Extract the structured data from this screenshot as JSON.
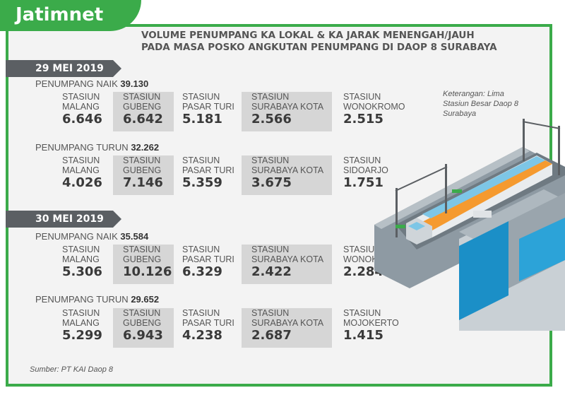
{
  "brand": {
    "logo": "Jatimnet"
  },
  "title": {
    "line1": "VOLUME PENUMPANG KA LOKAL & KA JARAK MENENGAH/JAUH",
    "line2": "PADA MASA POSKO ANGKUTAN PENUMPANG DI DAOP 8 SURABAYA"
  },
  "note": "Keterangan: Lima Stasiun Besar Daop 8 Surabaya",
  "source": "Sumber: PT KAI Daop 8",
  "days": [
    {
      "date": "29 MEI 2019",
      "naik": {
        "label": "PENUMPANG NAIK",
        "total": "39.130",
        "stations": [
          {
            "l1": "STASIUN",
            "l2": "MALANG",
            "value": "6.646"
          },
          {
            "l1": "STASIUN",
            "l2": "GUBENG",
            "value": "6.642"
          },
          {
            "l1": "STASIUN",
            "l2": "PASAR TURI",
            "value": "5.181"
          },
          {
            "l1": "STASIUN",
            "l2": "SURABAYA KOTA",
            "value": "2.566"
          },
          {
            "l1": "STASIUN",
            "l2": "WONOKROMO",
            "value": "2.515"
          }
        ]
      },
      "turun": {
        "label": "PENUMPANG TURUN",
        "total": "32.262",
        "stations": [
          {
            "l1": "STASIUN",
            "l2": "MALANG",
            "value": "4.026"
          },
          {
            "l1": "STASIUN",
            "l2": "GUBENG",
            "value": "7.146"
          },
          {
            "l1": "STASIUN",
            "l2": "PASAR TURI",
            "value": "5.359"
          },
          {
            "l1": "STASIUN",
            "l2": "SURABAYA KOTA",
            "value": "3.675"
          },
          {
            "l1": "STASIUN",
            "l2": "SIDOARJO",
            "value": "1.751"
          }
        ]
      }
    },
    {
      "date": "30 MEI 2019",
      "naik": {
        "label": "PENUMPANG NAIK",
        "total": "35.584",
        "stations": [
          {
            "l1": "STASIUN",
            "l2": "MALANG",
            "value": "5.306"
          },
          {
            "l1": "STASIUN",
            "l2": "GUBENG",
            "value": "10.126"
          },
          {
            "l1": "STASIUN",
            "l2": "PASAR TURI",
            "value": "6.329"
          },
          {
            "l1": "STASIUN",
            "l2": "SURABAYA KOTA",
            "value": "2.422"
          },
          {
            "l1": "STASIUN",
            "l2": "WONOKROMO",
            "value": "2.284"
          }
        ]
      },
      "turun": {
        "label": "PENUMPANG TURUN",
        "total": "29.652",
        "stations": [
          {
            "l1": "STASIUN",
            "l2": "MALANG",
            "value": "5.299"
          },
          {
            "l1": "STASIUN",
            "l2": "GUBENG",
            "value": "6.943"
          },
          {
            "l1": "STASIUN",
            "l2": "PASAR TURI",
            "value": "4.238"
          },
          {
            "l1": "STASIUN",
            "l2": "SURABAYA KOTA",
            "value": "2.687"
          },
          {
            "l1": "STASIUN",
            "l2": "MOJOKERTO",
            "value": "1.415"
          }
        ]
      }
    }
  ],
  "colors": {
    "brand_green": "#3bab4a",
    "date_bar": "#5b5f63",
    "shade": "#d6d6d6"
  },
  "illustration": "train-station-illustration"
}
